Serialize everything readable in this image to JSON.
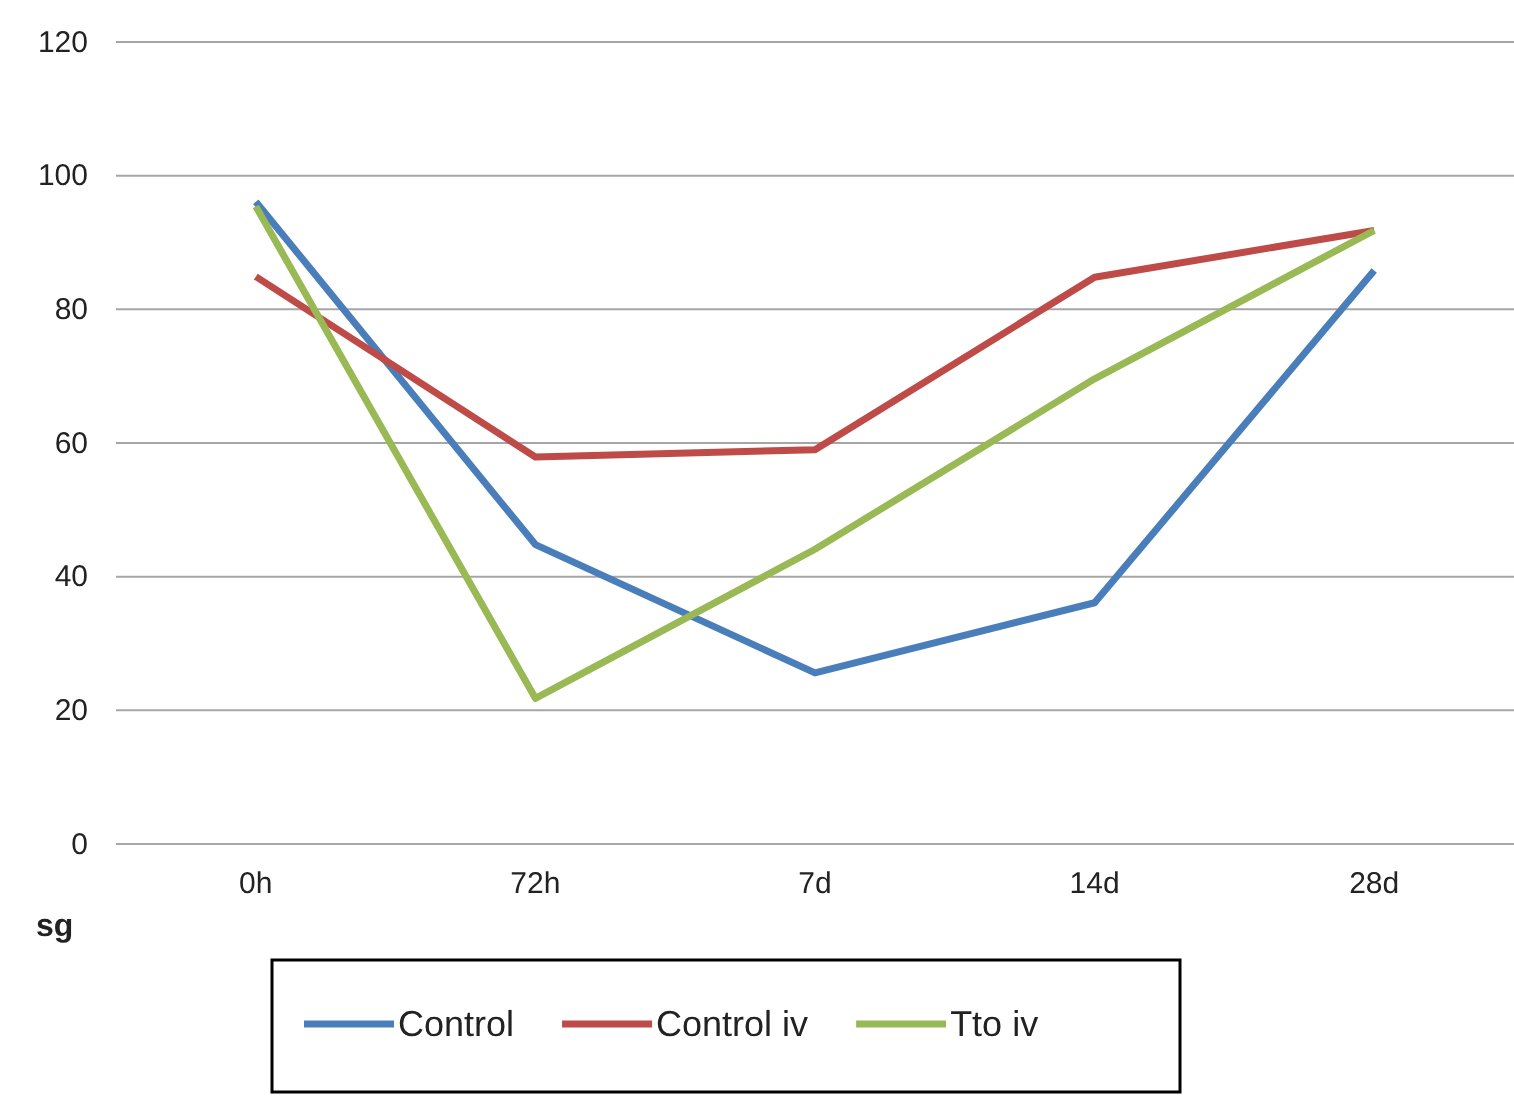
{
  "chart_data": {
    "type": "line",
    "xlabel": "sg",
    "categories": [
      "0h",
      "72h",
      "7d",
      "14d",
      "28d"
    ],
    "series": [
      {
        "name": "Control",
        "color": "#4a7ebb",
        "values": [
          96.1,
          44.8,
          25.6,
          36.1,
          85.8
        ]
      },
      {
        "name": "Control iv",
        "color": "#be4b48",
        "values": [
          84.9,
          57.9,
          59,
          84.8,
          91.8
        ]
      },
      {
        "name": "Tto iv",
        "color": "#98b954",
        "values": [
          95.4,
          21.8,
          44.1,
          69.6,
          91.8
        ]
      }
    ],
    "ylim": [
      0,
      120
    ],
    "yticks": [
      0,
      20,
      40,
      60,
      80,
      100,
      120
    ],
    "grid": "y",
    "legend": "bottom",
    "marker": "none"
  }
}
